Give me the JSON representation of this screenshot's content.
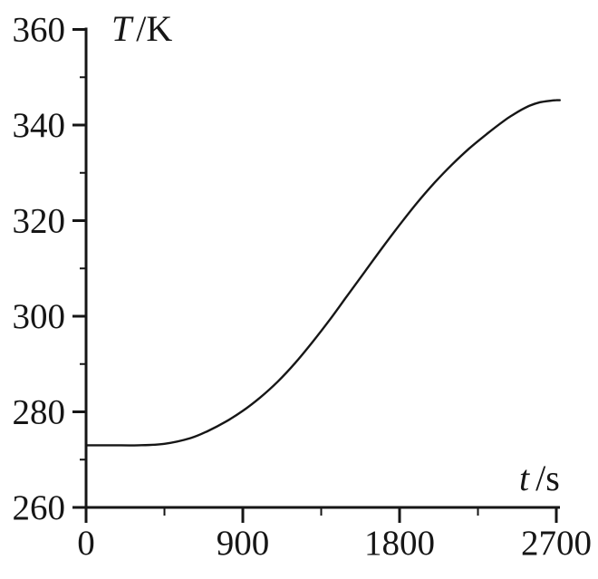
{
  "figure": {
    "description": "Temperature versus time heating curve"
  },
  "colors": {
    "ink": "#161616",
    "background": "#ffffff"
  },
  "chart_data": {
    "type": "line",
    "title": "",
    "ylabel_symbol": "T",
    "ylabel_unit": "/K",
    "xlabel_symbol": "t",
    "xlabel_unit": "/s",
    "xlim": [
      0,
      2700
    ],
    "ylim": [
      260,
      360
    ],
    "x_ticks": [
      0,
      900,
      1800,
      2700
    ],
    "x_minor_ticks": [
      450,
      1350,
      2250
    ],
    "y_ticks": [
      260,
      280,
      300,
      320,
      340,
      360
    ],
    "y_minor_ticks": [
      270,
      290,
      310,
      330,
      350
    ],
    "grid": false,
    "legend": "none",
    "series": [
      {
        "name": "temperature",
        "x": [
          0,
          150,
          300,
          450,
          600,
          700,
          800,
          900,
          1000,
          1100,
          1200,
          1300,
          1400,
          1500,
          1600,
          1700,
          1800,
          1900,
          2000,
          2100,
          2200,
          2300,
          2400,
          2450,
          2500,
          2550,
          2600,
          2650,
          2700,
          2720
        ],
        "y": [
          273,
          273,
          273,
          273.3,
          274.5,
          276,
          277.9,
          280.2,
          283,
          286.3,
          290.2,
          294.6,
          299.3,
          304.3,
          309.3,
          314.3,
          319.1,
          323.7,
          327.9,
          331.7,
          335.1,
          338.1,
          340.9,
          342.1,
          343.2,
          344.1,
          344.7,
          345.0,
          345.2,
          345.2
        ]
      }
    ],
    "annotations": {
      "start_plateau_K": 273,
      "end_plateau_K": 345
    }
  }
}
